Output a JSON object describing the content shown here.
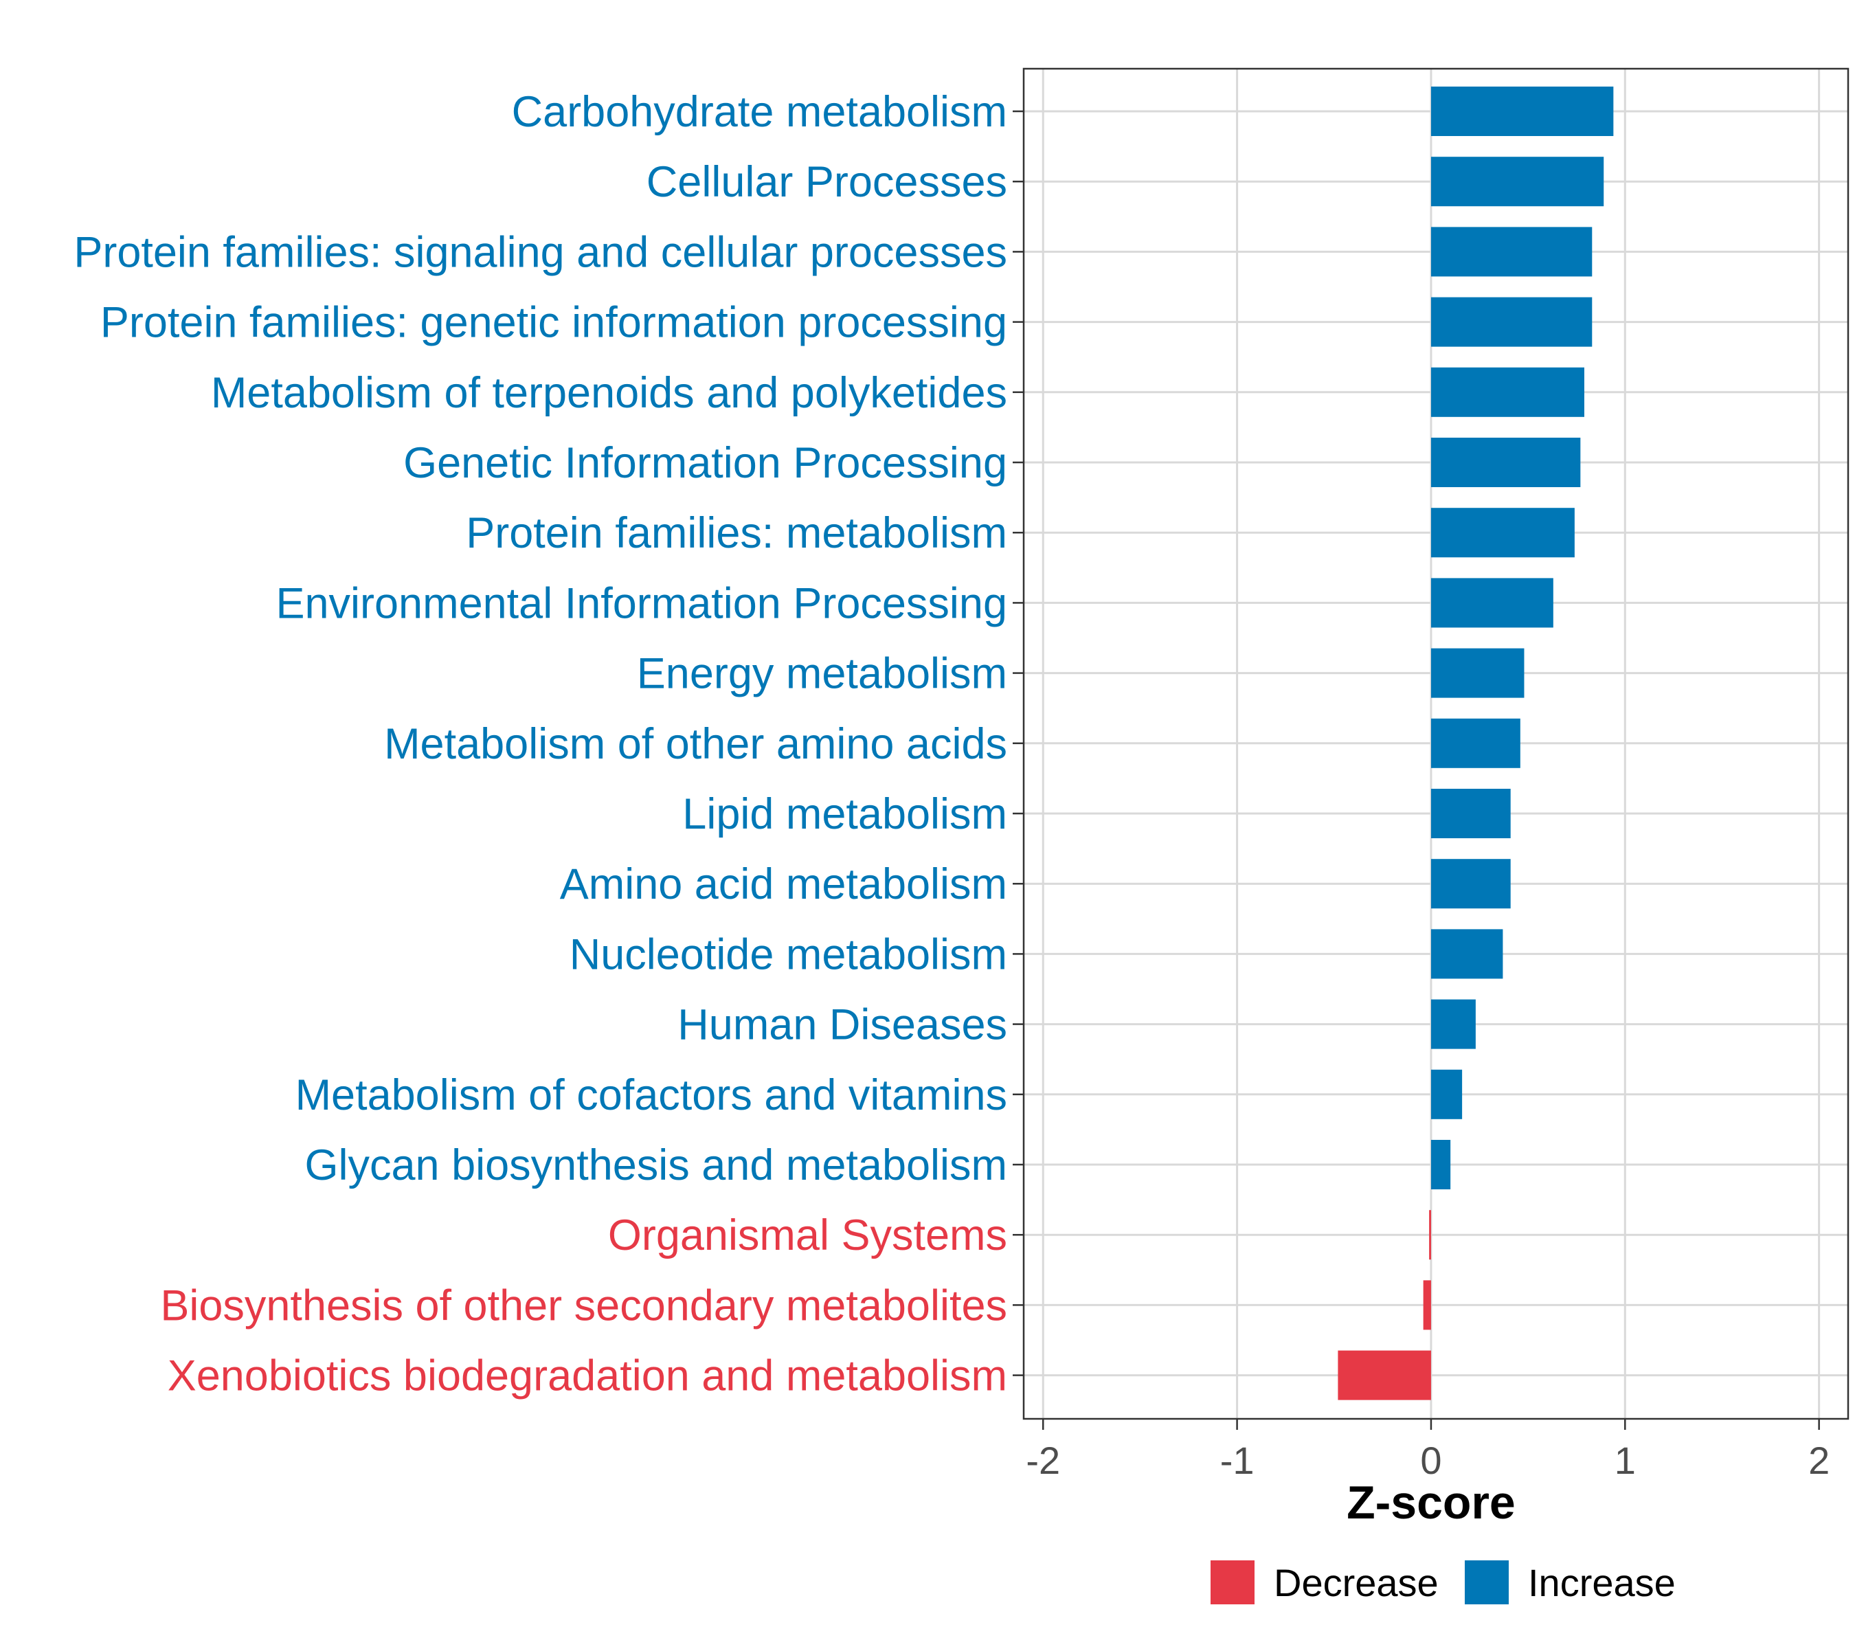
{
  "chart_data": {
    "type": "bar",
    "orientation": "horizontal",
    "title": "",
    "xlabel": "Z-score",
    "ylabel": "",
    "xlim": [
      -2.1,
      2.15
    ],
    "xticks": [
      -2,
      -1,
      0,
      1,
      2
    ],
    "xtick_labels": [
      "-2",
      "-1",
      "0",
      "1",
      "2"
    ],
    "grid": true,
    "legend_position": "bottom",
    "colors": {
      "Decrease": "#E63946",
      "Increase": "#0077B6"
    },
    "legend": [
      {
        "name": "Decrease",
        "color": "#E63946"
      },
      {
        "name": "Increase",
        "color": "#0077B6"
      }
    ],
    "categories": [
      "Carbohydrate metabolism",
      "Cellular Processes",
      "Protein families: signaling and cellular processes",
      "Protein families: genetic information processing",
      "Metabolism of terpenoids and polyketides",
      "Genetic Information Processing",
      "Protein families: metabolism",
      "Environmental Information Processing",
      "Energy metabolism",
      "Metabolism of other amino acids",
      "Lipid metabolism",
      "Amino acid metabolism",
      "Nucleotide metabolism",
      "Human Diseases",
      "Metabolism of cofactors and vitamins",
      "Glycan biosynthesis and metabolism",
      "Organismal Systems",
      "Biosynthesis of other secondary metabolites",
      "Xenobiotics biodegradation and metabolism"
    ],
    "values": [
      0.94,
      0.89,
      0.83,
      0.83,
      0.79,
      0.77,
      0.74,
      0.63,
      0.48,
      0.46,
      0.41,
      0.41,
      0.37,
      0.23,
      0.16,
      0.1,
      -0.01,
      -0.04,
      -0.48
    ],
    "groups": [
      "Increase",
      "Increase",
      "Increase",
      "Increase",
      "Increase",
      "Increase",
      "Increase",
      "Increase",
      "Increase",
      "Increase",
      "Increase",
      "Increase",
      "Increase",
      "Increase",
      "Increase",
      "Increase",
      "Decrease",
      "Decrease",
      "Decrease"
    ]
  }
}
